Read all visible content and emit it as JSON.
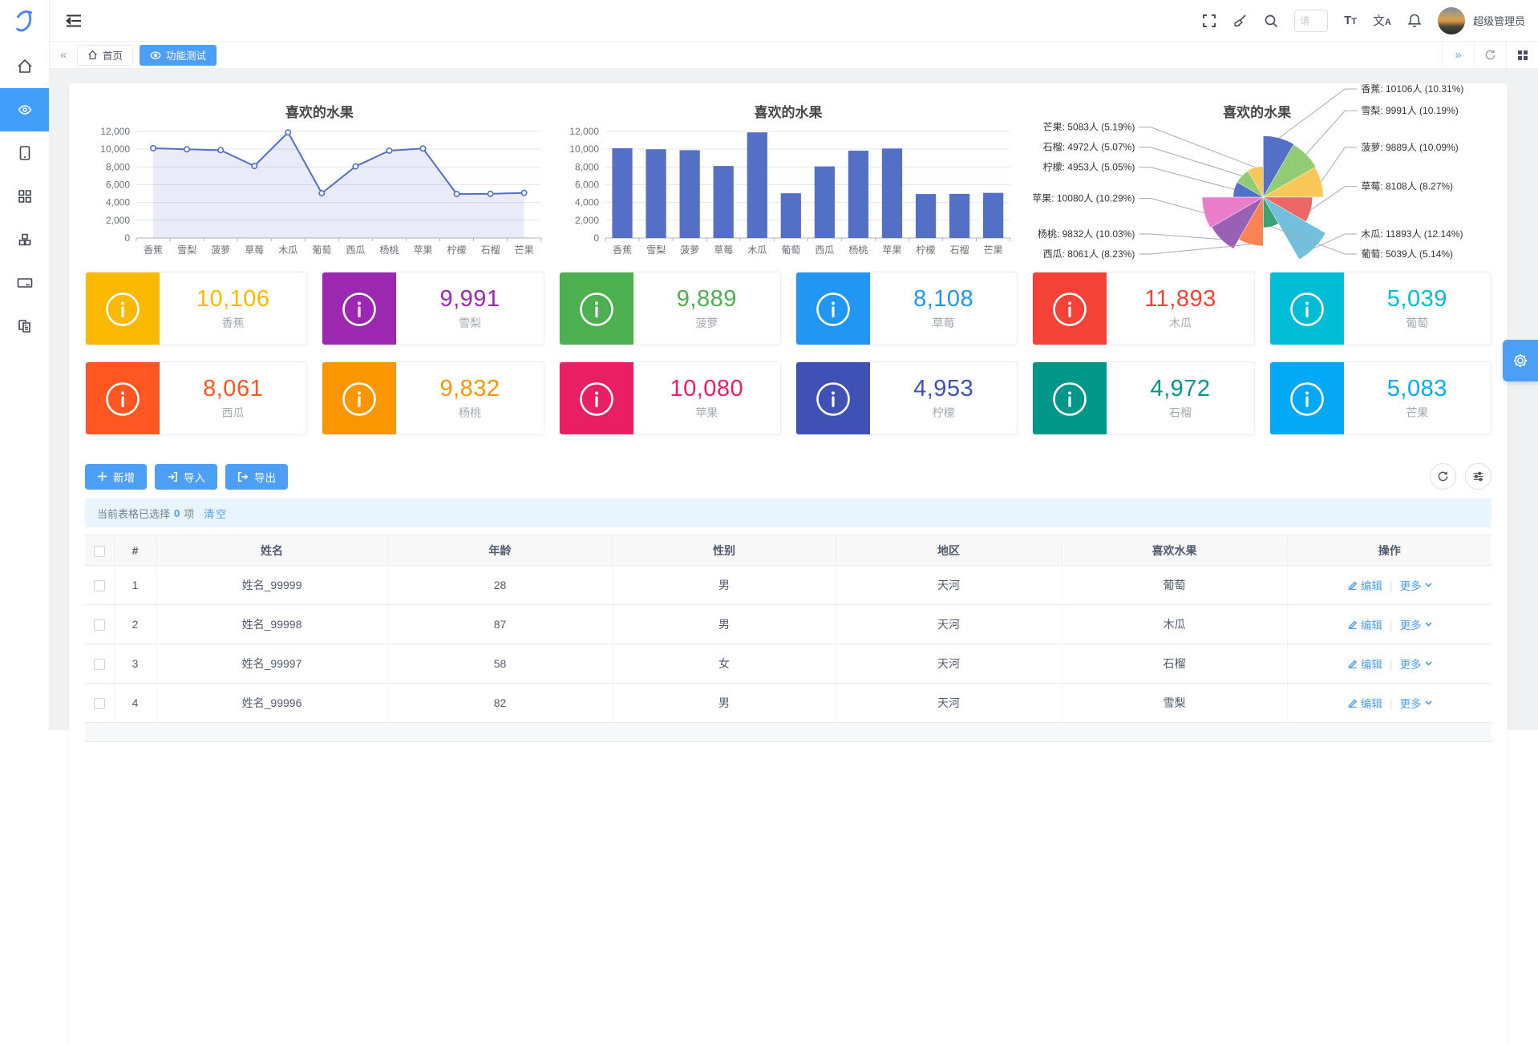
{
  "app": {
    "user": "超级管理员",
    "search_placeholder": "请"
  },
  "navbar_icons": [
    "fullscreen-icon",
    "broom-icon",
    "search-icon",
    "font-size-icon",
    "language-icon",
    "bell-icon"
  ],
  "tabbar": {
    "tabs": [
      {
        "label": "首页",
        "icon": "home-icon",
        "active": false
      },
      {
        "label": "功能测试",
        "icon": "eye-icon",
        "active": true
      }
    ]
  },
  "sidebar": {
    "items": [
      "home-icon",
      "eye-icon",
      "tablet-icon",
      "grid-icon",
      "cubes-icon",
      "card-icon",
      "copy-file-icon"
    ]
  },
  "chart_data": [
    {
      "type": "line",
      "title": "喜欢的水果",
      "categories": [
        "香蕉",
        "雪梨",
        "菠萝",
        "草莓",
        "木瓜",
        "葡萄",
        "西瓜",
        "杨桃",
        "苹果",
        "柠檬",
        "石榴",
        "芒果"
      ],
      "values": [
        10106,
        9991,
        9889,
        8108,
        11893,
        5039,
        8061,
        9832,
        10080,
        4953,
        4972,
        5083
      ],
      "ylim": [
        0,
        12000
      ],
      "ytick_step": 2000,
      "color": "#5470c6",
      "area": true,
      "grid": true
    },
    {
      "type": "bar",
      "title": "喜欢的水果",
      "categories": [
        "香蕉",
        "雪梨",
        "菠萝",
        "草莓",
        "木瓜",
        "葡萄",
        "西瓜",
        "杨桃",
        "苹果",
        "柠檬",
        "石榴",
        "芒果"
      ],
      "values": [
        10106,
        9991,
        9889,
        8108,
        11893,
        5039,
        8061,
        9832,
        10080,
        4953,
        4972,
        5083
      ],
      "ylim": [
        0,
        12000
      ],
      "ytick_step": 2000,
      "color": "#5470c6",
      "grid": true
    },
    {
      "type": "pie",
      "title": "喜欢的水果",
      "rose": true,
      "unit": "人",
      "series": [
        {
          "name": "香蕉",
          "value": 10106,
          "pct": "10.31",
          "color": "#5470c6"
        },
        {
          "name": "雪梨",
          "value": 9991,
          "pct": "10.19",
          "color": "#91cc75"
        },
        {
          "name": "菠萝",
          "value": 9889,
          "pct": "10.09",
          "color": "#fac858"
        },
        {
          "name": "草莓",
          "value": 8108,
          "pct": "8.27",
          "color": "#ee6666"
        },
        {
          "name": "木瓜",
          "value": 11893,
          "pct": "12.14",
          "color": "#73c0de"
        },
        {
          "name": "葡萄",
          "value": 5039,
          "pct": "5.14",
          "color": "#3ba272"
        },
        {
          "name": "西瓜",
          "value": 8061,
          "pct": "8.23",
          "color": "#fc8452"
        },
        {
          "name": "杨桃",
          "value": 9832,
          "pct": "10.03",
          "color": "#9a60b4"
        },
        {
          "name": "苹果",
          "value": 10080,
          "pct": "10.29",
          "color": "#ea7ccc"
        },
        {
          "name": "柠檬",
          "value": 4953,
          "pct": "5.05",
          "color": "#5470c6"
        },
        {
          "name": "石榴",
          "value": 4972,
          "pct": "5.07",
          "color": "#91cc75"
        },
        {
          "name": "芒果",
          "value": 5083,
          "pct": "5.19",
          "color": "#fac858"
        }
      ]
    }
  ],
  "cards": [
    {
      "label": "香蕉",
      "value": "10,106",
      "color": "#fbb903"
    },
    {
      "label": "雪梨",
      "value": "9,991",
      "color": "#9c27b0"
    },
    {
      "label": "菠萝",
      "value": "9,889",
      "color": "#4caf50"
    },
    {
      "label": "草莓",
      "value": "8,108",
      "color": "#2196f3"
    },
    {
      "label": "木瓜",
      "value": "11,893",
      "color": "#f44336"
    },
    {
      "label": "葡萄",
      "value": "5,039",
      "color": "#00bcd4"
    },
    {
      "label": "西瓜",
      "value": "8,061",
      "color": "#ff5722"
    },
    {
      "label": "杨桃",
      "value": "9,832",
      "color": "#fa9600"
    },
    {
      "label": "苹果",
      "value": "10,080",
      "color": "#e91e63"
    },
    {
      "label": "柠檬",
      "value": "4,953",
      "color": "#3f51b5"
    },
    {
      "label": "石榴",
      "value": "4,972",
      "color": "#009688"
    },
    {
      "label": "芒果",
      "value": "5,083",
      "color": "#03a9f4"
    }
  ],
  "toolbar": {
    "add": "新增",
    "import": "导入",
    "export": "导出"
  },
  "alert": {
    "prefix": "当前表格已选择",
    "count": "0",
    "suffix": "项",
    "clear": "清空"
  },
  "table": {
    "headers": [
      "#",
      "姓名",
      "年龄",
      "性别",
      "地区",
      "喜欢水果",
      "操作"
    ],
    "edit_label": "编辑",
    "more_label": "更多",
    "rows": [
      {
        "idx": "1",
        "name": "姓名_99999",
        "age": "28",
        "gender": "男",
        "region": "天河",
        "fruit": "葡萄"
      },
      {
        "idx": "2",
        "name": "姓名_99998",
        "age": "87",
        "gender": "男",
        "region": "天河",
        "fruit": "木瓜"
      },
      {
        "idx": "3",
        "name": "姓名_99997",
        "age": "58",
        "gender": "女",
        "region": "天河",
        "fruit": "石榴"
      },
      {
        "idx": "4",
        "name": "姓名_99996",
        "age": "82",
        "gender": "男",
        "region": "天河",
        "fruit": "雪梨"
      }
    ]
  }
}
